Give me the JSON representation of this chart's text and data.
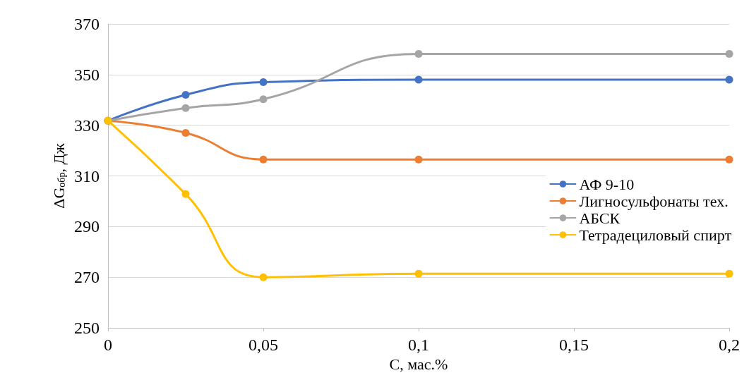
{
  "chart_data": {
    "type": "line",
    "xlabel": "C, мас.%",
    "ylabel": "ΔG$_{обр}$, Дж",
    "x": [
      0,
      0.025,
      0.05,
      0.1,
      0.2
    ],
    "series": [
      {
        "name": "АФ 9-10",
        "color": "#4472c4",
        "values": [
          331.8,
          342,
          347,
          348,
          348
        ]
      },
      {
        "name": "Лигносульфонаты тех.",
        "color": "#ed7d31",
        "values": [
          331.8,
          327,
          316.5,
          316.5,
          316.5
        ]
      },
      {
        "name": "АБСК",
        "color": "#a5a5a5",
        "values": [
          331.8,
          336.8,
          340.3,
          358.2,
          358.2
        ]
      },
      {
        "name": "Тетрадециловый спирт",
        "color": "#ffc000",
        "values": [
          331.8,
          302.8,
          270,
          271.4,
          271.4
        ]
      }
    ],
    "xlim": [
      0,
      0.2
    ],
    "xticks": [
      0,
      {
        "value": 0.05,
        "label": "0,05"
      },
      {
        "value": 0.1,
        "label": "0,1"
      },
      {
        "value": 0.15,
        "label": "0,15"
      },
      {
        "value": 0.2,
        "label": "0,2"
      }
    ],
    "ylim": [
      250,
      370
    ],
    "yticks": [
      250,
      270,
      290,
      310,
      330,
      350,
      370
    ],
    "grid": "y",
    "legend": "right",
    "marker": "circle",
    "line_style": "solid"
  }
}
